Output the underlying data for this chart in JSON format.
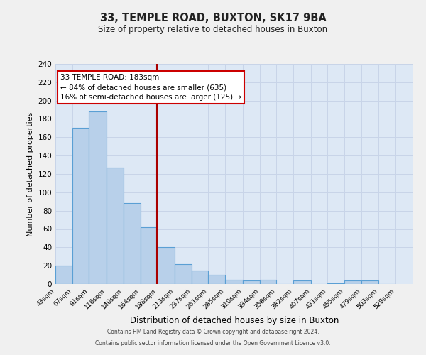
{
  "title": "33, TEMPLE ROAD, BUXTON, SK17 9BA",
  "subtitle": "Size of property relative to detached houses in Buxton",
  "xlabel": "Distribution of detached houses by size in Buxton",
  "ylabel": "Number of detached properties",
  "bar_labels": [
    "43sqm",
    "67sqm",
    "91sqm",
    "116sqm",
    "140sqm",
    "164sqm",
    "188sqm",
    "213sqm",
    "237sqm",
    "261sqm",
    "285sqm",
    "310sqm",
    "334sqm",
    "358sqm",
    "382sqm",
    "407sqm",
    "431sqm",
    "455sqm",
    "479sqm",
    "503sqm",
    "528sqm"
  ],
  "bar_values": [
    20,
    170,
    188,
    127,
    88,
    62,
    40,
    22,
    15,
    10,
    5,
    4,
    5,
    0,
    4,
    0,
    1,
    4,
    4,
    0
  ],
  "bar_edges": [
    43,
    67,
    91,
    116,
    140,
    164,
    188,
    213,
    237,
    261,
    285,
    310,
    334,
    358,
    382,
    407,
    431,
    455,
    479,
    503,
    528
  ],
  "bar_color": "#b8d0ea",
  "bar_edgecolor": "#5a9fd4",
  "vline_x": 188,
  "vline_color": "#aa0000",
  "annotation_title": "33 TEMPLE ROAD: 183sqm",
  "annotation_line1": "← 84% of detached houses are smaller (635)",
  "annotation_line2": "16% of semi-detached houses are larger (125) →",
  "annotation_box_edgecolor": "#cc0000",
  "ylim": [
    0,
    240
  ],
  "yticks": [
    0,
    20,
    40,
    60,
    80,
    100,
    120,
    140,
    160,
    180,
    200,
    220,
    240
  ],
  "grid_color": "#c8d4e8",
  "bg_color": "#dde8f5",
  "fig_bg_color": "#f0f0f0",
  "footer1": "Contains HM Land Registry data © Crown copyright and database right 2024.",
  "footer2": "Contains public sector information licensed under the Open Government Licence v3.0."
}
